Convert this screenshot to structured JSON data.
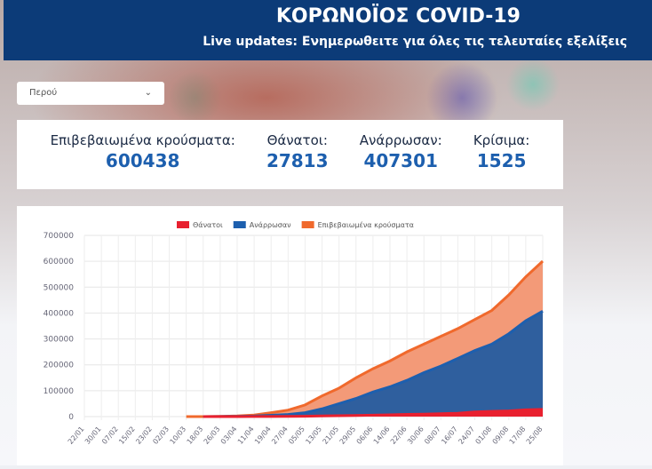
{
  "header": {
    "title": "ΚΟΡΩΝΟΪΟΣ COVID-19",
    "subtitle": "Live updates: Ενημερωθειτε για όλες τις τελευταίες εξελίξεις",
    "color": "#0c3b78"
  },
  "country_select": {
    "value": "Περού",
    "icon": "chevron-down-icon"
  },
  "stats": [
    {
      "label": "Επιβεβαιωμένα κρούσματα:",
      "value": "600438"
    },
    {
      "label": "Θάνατοι:",
      "value": "27813"
    },
    {
      "label": "Ανάρρωσαν:",
      "value": "407301"
    },
    {
      "label": "Κρίσιμα:",
      "value": "1525"
    }
  ],
  "chart_data": {
    "type": "area",
    "legend_position": "top",
    "grid": true,
    "ylim": [
      0,
      700000
    ],
    "yticks": [
      "700000",
      "600000",
      "500000",
      "400000",
      "300000",
      "200000",
      "100000",
      "0"
    ],
    "categories": [
      "22/01",
      "30/01",
      "07/02",
      "15/02",
      "23/02",
      "02/03",
      "10/03",
      "18/03",
      "26/03",
      "03/04",
      "11/04",
      "19/04",
      "27/04",
      "05/05",
      "13/05",
      "21/05",
      "29/05",
      "06/06",
      "14/06",
      "22/06",
      "30/06",
      "08/07",
      "16/07",
      "24/07",
      "01/08",
      "09/08",
      "17/08",
      "25/08"
    ],
    "series": [
      {
        "name": "Θάνατοι",
        "color": "#e8202f",
        "values": [
          null,
          null,
          null,
          null,
          null,
          null,
          null,
          0,
          30,
          100,
          300,
          500,
          800,
          1200,
          2500,
          3500,
          4500,
          5500,
          7000,
          8500,
          9500,
          11000,
          13000,
          18000,
          20000,
          22000,
          26000,
          27813
        ]
      },
      {
        "name": "Ανάρρωσαν",
        "color": "#1d5fae",
        "values": [
          null,
          null,
          null,
          null,
          null,
          null,
          null,
          0,
          500,
          1000,
          2000,
          5000,
          8000,
          15000,
          30000,
          50000,
          70000,
          95000,
          115000,
          140000,
          170000,
          195000,
          225000,
          255000,
          280000,
          320000,
          370000,
          407301
        ]
      },
      {
        "name": "Επιβεβαιωμένα κρούσματα",
        "color": "#f0692c",
        "values": [
          null,
          null,
          null,
          null,
          null,
          null,
          0,
          200,
          900,
          2500,
          6000,
          15000,
          25000,
          45000,
          80000,
          110000,
          150000,
          185000,
          215000,
          250000,
          280000,
          310000,
          340000,
          375000,
          410000,
          470000,
          540000,
          600438
        ]
      }
    ]
  }
}
